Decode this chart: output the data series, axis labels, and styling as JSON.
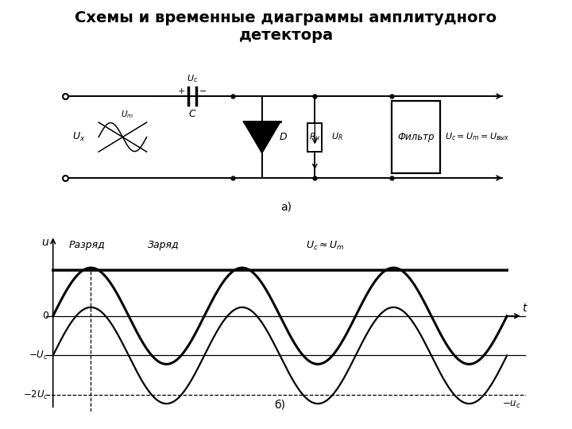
{
  "title_line1": "Схемы и временные диаграммы амплитудного",
  "title_line2": "детектора",
  "title_fontsize": 14,
  "fig_bg": "#ffffff",
  "panel_bg": "#ddd8ce",
  "black": "#000000",
  "circuit": {
    "a_label": "а)",
    "Uc_label": "$U_c$",
    "C_label": "$C$",
    "D_label": "$D$",
    "Ux_label": "$U_x$",
    "Um_label": "$U_m$",
    "Rn_label": "$R_н$",
    "UR_label": "$U_R$",
    "Filter_label": "Фильтр",
    "Output_label": "$U_c=U_m=U_{вых}$"
  },
  "timing": {
    "discharge_label": "Разряд",
    "charge_label": "Заряд",
    "uc_approx_um_label": "$U_c\\approx U_m$",
    "zero_label": "0",
    "minus_uc_label": "$-U_c$",
    "minus_2uc_label": "$-2U_c$",
    "minus_uc_curve_label": "$-u_c$",
    "u_label": "u",
    "t_label": "t",
    "b_label": "б)"
  },
  "A": 1.0,
  "Uc": 0.82,
  "num_periods": 3
}
